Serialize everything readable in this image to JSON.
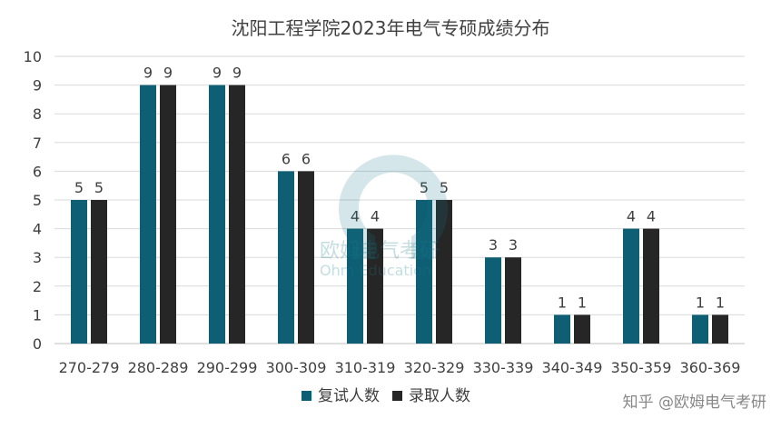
{
  "chart_data": {
    "type": "bar",
    "title": "沈阳工程学院2023年电气专硕成绩分布",
    "categories": [
      "270-279",
      "280-289",
      "290-299",
      "300-309",
      "310-319",
      "320-329",
      "330-339",
      "340-349",
      "350-359",
      "360-369"
    ],
    "series": [
      {
        "name": "复试人数",
        "values": [
          5,
          9,
          9,
          6,
          4,
          5,
          3,
          1,
          4,
          1
        ],
        "color": "#0e5f73"
      },
      {
        "name": "录取人数",
        "values": [
          5,
          9,
          9,
          6,
          4,
          5,
          3,
          1,
          4,
          1
        ],
        "color": "#262626"
      }
    ],
    "ylim": [
      0,
      10
    ],
    "yticks": [
      0,
      1,
      2,
      3,
      4,
      5,
      6,
      7,
      8,
      9,
      10
    ],
    "grid": true,
    "legend": "bottom",
    "data_labels": true
  },
  "watermark": {
    "text": "知乎 @欧姆电气考研",
    "logo_text": "欧姆电气考研",
    "logo_subtext": "Ohm Education"
  }
}
